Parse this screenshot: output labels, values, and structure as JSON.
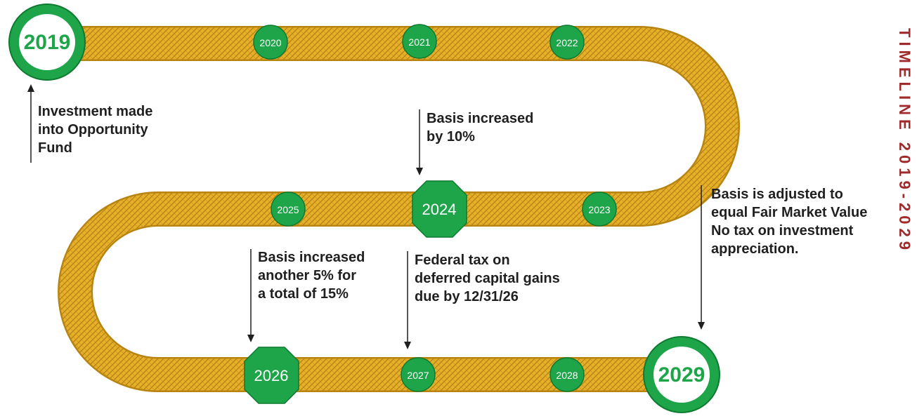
{
  "colors": {
    "road_fill": "#e8b02a",
    "road_edge": "#b78411",
    "road_hatch": "#a67a10",
    "milestone": "#1ea54a",
    "milestone_edge": "#0d7a30",
    "big_text": "#1ea54a",
    "side_text": "#9e2a2b"
  },
  "milestones": {
    "y2019": "2019",
    "y2020": "2020",
    "y2021": "2021",
    "y2022": "2022",
    "y2023": "2023",
    "y2024": "2024",
    "y2025": "2025",
    "y2026": "2026",
    "y2027": "2027",
    "y2028": "2028",
    "y2029": "2029"
  },
  "notes": {
    "investment": "Investment made\ninto Opportunity\nFund",
    "basis10": "Basis increased\nby 10%",
    "basis15": "Basis increased\nanother 5% for\na total of 15%",
    "federal_tax": "Federal tax on\ndeferred capital gains\ndue by 12/31/26",
    "fair_value": "Basis is adjusted to\nequal Fair Market Value\nNo tax on investment\nappreciation."
  },
  "side_text": "TIMELINE 2019-2029"
}
